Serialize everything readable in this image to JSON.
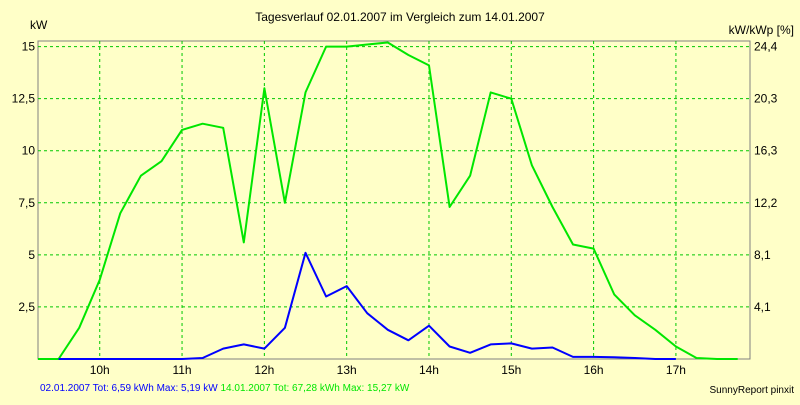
{
  "chart_data": {
    "type": "line",
    "title": "Tagesverlauf 02.01.2007 im Vergleich zum 14.01.2007",
    "ylabel_left": "kW",
    "ylabel_right": "kW/kWp [%]",
    "ylim": [
      0,
      15.27
    ],
    "xlim": [
      9.25,
      17.9
    ],
    "y_ticks_left": [
      {
        "v": 2.5,
        "label": "2,5"
      },
      {
        "v": 5,
        "label": "5"
      },
      {
        "v": 7.5,
        "label": "7,5"
      },
      {
        "v": 10,
        "label": "10"
      },
      {
        "v": 12.5,
        "label": "12,5"
      },
      {
        "v": 15,
        "label": "15"
      }
    ],
    "y_ticks_right": [
      "4,1",
      "8,1",
      "12,2",
      "16,3",
      "20,3",
      "24,4"
    ],
    "x_ticks": [
      {
        "v": 10,
        "label": "10h"
      },
      {
        "v": 11,
        "label": "11h"
      },
      {
        "v": 12,
        "label": "12h"
      },
      {
        "v": 13,
        "label": "13h"
      },
      {
        "v": 14,
        "label": "14h"
      },
      {
        "v": 15,
        "label": "15h"
      },
      {
        "v": 16,
        "label": "16h"
      },
      {
        "v": 17,
        "label": "17h"
      }
    ],
    "grid": true,
    "series": [
      {
        "name": "14.01.2007",
        "color": "#00e600",
        "x": [
          9.25,
          9.5,
          9.75,
          10.0,
          10.25,
          10.5,
          10.75,
          11.0,
          11.25,
          11.5,
          11.75,
          12.0,
          12.25,
          12.5,
          12.75,
          13.0,
          13.25,
          13.5,
          13.75,
          14.0,
          14.25,
          14.5,
          14.75,
          15.0,
          15.25,
          15.5,
          15.75,
          16.0,
          16.25,
          16.5,
          16.75,
          17.0,
          17.25,
          17.5,
          17.75
        ],
        "y": [
          0.0,
          0.0,
          1.5,
          3.8,
          7.0,
          8.8,
          9.5,
          11.0,
          11.3,
          11.1,
          5.6,
          13.0,
          7.5,
          12.8,
          15.0,
          15.0,
          15.1,
          15.2,
          14.6,
          14.1,
          7.3,
          8.8,
          12.8,
          12.5,
          9.3,
          7.3,
          5.5,
          5.3,
          3.1,
          2.1,
          1.4,
          0.6,
          0.05,
          0.0,
          0.0
        ]
      },
      {
        "name": "02.01.2007",
        "color": "#0000ff",
        "x": [
          9.5,
          9.75,
          10.0,
          10.25,
          10.5,
          10.75,
          11.0,
          11.25,
          11.5,
          11.75,
          12.0,
          12.25,
          12.5,
          12.75,
          13.0,
          13.25,
          13.5,
          13.75,
          14.0,
          14.25,
          14.5,
          14.75,
          15.0,
          15.25,
          15.5,
          15.75,
          16.0,
          16.25,
          16.5,
          16.75,
          17.0
        ],
        "y": [
          0.0,
          0.0,
          0.0,
          0.0,
          0.0,
          0.0,
          0.0,
          0.05,
          0.5,
          0.7,
          0.5,
          1.5,
          5.1,
          3.0,
          3.5,
          2.2,
          1.4,
          0.9,
          1.6,
          0.6,
          0.3,
          0.7,
          0.75,
          0.5,
          0.55,
          0.1,
          0.1,
          0.08,
          0.05,
          0.0,
          0.0
        ]
      }
    ]
  },
  "footer": {
    "series1_text": "02.01.2007 Tot: 6,59 kWh Max: 5,19 kW",
    "series2_text": "14.01.2007 Tot: 67,28 kWh Max: 15,27 kW",
    "brand": "SunnyReport pinxit"
  }
}
